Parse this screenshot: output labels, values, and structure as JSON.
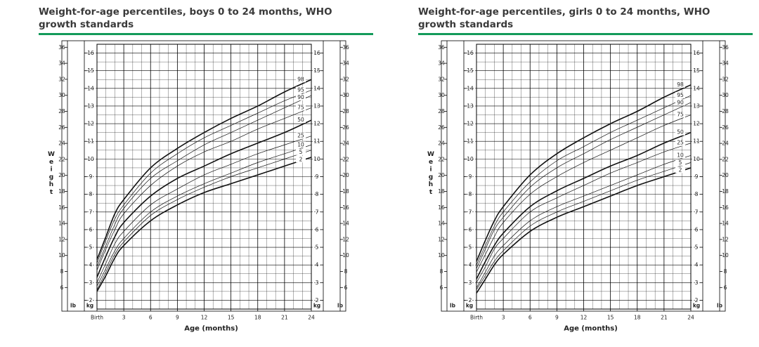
{
  "charts": [
    {
      "title": "Weight-for-age percentiles, boys 0 to 24 months, WHO growth standards"
    },
    {
      "title": "Weight-for-age percentiles, girls 0 to 24 months, WHO growth standards"
    }
  ],
  "chart_data": [
    {
      "type": "line",
      "title": "Weight-for-age percentiles, boys 0 to 24 months, WHO growth standards",
      "xlabel": "Age (months)",
      "ylabel": "Weight",
      "x_ticks": [
        0,
        3,
        6,
        9,
        12,
        15,
        18,
        21,
        24
      ],
      "x_tick_labels": [
        "Birth",
        "3",
        "6",
        "9",
        "12",
        "15",
        "18",
        "21",
        "24"
      ],
      "xlim": [
        0,
        24
      ],
      "kg_axis": {
        "unit": "kg",
        "lim": [
          1.5,
          16.5
        ],
        "ticks": [
          2,
          3,
          4,
          5,
          6,
          7,
          8,
          9,
          10,
          11,
          12,
          13,
          14,
          15,
          16
        ]
      },
      "lb_axis": {
        "unit": "lb",
        "ticks": [
          6,
          8,
          10,
          12,
          14,
          16,
          18,
          20,
          22,
          24,
          26,
          28,
          30,
          32,
          34,
          36
        ]
      },
      "grid": true,
      "x": [
        0,
        1,
        2,
        3,
        6,
        9,
        12,
        15,
        18,
        21,
        24
      ],
      "series": [
        {
          "name": "2",
          "values": [
            2.5,
            3.4,
            4.4,
            5.1,
            6.5,
            7.4,
            8.1,
            8.6,
            9.1,
            9.6,
            10.1
          ]
        },
        {
          "name": "5",
          "values": [
            2.6,
            3.6,
            4.6,
            5.3,
            6.8,
            7.7,
            8.4,
            9.0,
            9.5,
            10.0,
            10.5
          ]
        },
        {
          "name": "10",
          "values": [
            2.8,
            3.8,
            4.8,
            5.5,
            7.0,
            7.9,
            8.6,
            9.2,
            9.8,
            10.3,
            10.8
          ]
        },
        {
          "name": "25",
          "values": [
            3.0,
            4.1,
            5.2,
            5.9,
            7.4,
            8.3,
            9.1,
            9.7,
            10.3,
            10.8,
            11.3
          ]
        },
        {
          "name": "50",
          "values": [
            3.3,
            4.5,
            5.6,
            6.4,
            7.9,
            8.9,
            9.6,
            10.3,
            10.9,
            11.5,
            12.2
          ]
        },
        {
          "name": "75",
          "values": [
            3.7,
            4.9,
            6.0,
            6.9,
            8.5,
            9.6,
            10.4,
            11.0,
            11.7,
            12.3,
            12.9
          ]
        },
        {
          "name": "90",
          "values": [
            3.9,
            5.1,
            6.3,
            7.2,
            8.9,
            9.9,
            10.8,
            11.5,
            12.2,
            12.9,
            13.6
          ]
        },
        {
          "name": "95",
          "values": [
            4.1,
            5.4,
            6.6,
            7.4,
            9.2,
            10.3,
            11.2,
            11.9,
            12.6,
            13.3,
            13.9
          ]
        },
        {
          "name": "98",
          "values": [
            4.3,
            5.6,
            6.9,
            7.7,
            9.5,
            10.6,
            11.5,
            12.3,
            13.0,
            13.8,
            14.5
          ]
        }
      ]
    },
    {
      "type": "line",
      "title": "Weight-for-age percentiles, girls 0 to 24 months, WHO growth standards",
      "xlabel": "Age (months)",
      "ylabel": "Weight",
      "x_ticks": [
        0,
        3,
        6,
        9,
        12,
        15,
        18,
        21,
        24
      ],
      "x_tick_labels": [
        "Birth",
        "3",
        "6",
        "9",
        "12",
        "15",
        "18",
        "21",
        "24"
      ],
      "xlim": [
        0,
        24
      ],
      "kg_axis": {
        "unit": "kg",
        "lim": [
          1.5,
          16.5
        ],
        "ticks": [
          2,
          3,
          4,
          5,
          6,
          7,
          8,
          9,
          10,
          11,
          12,
          13,
          14,
          15,
          16
        ]
      },
      "lb_axis": {
        "unit": "lb",
        "ticks": [
          6,
          8,
          10,
          12,
          14,
          16,
          18,
          20,
          22,
          24,
          26,
          28,
          30,
          32,
          34,
          36
        ]
      },
      "grid": true,
      "x": [
        0,
        1,
        2,
        3,
        6,
        9,
        12,
        15,
        18,
        21,
        24
      ],
      "series": [
        {
          "name": "2",
          "values": [
            2.4,
            3.2,
            4.0,
            4.6,
            5.9,
            6.7,
            7.3,
            7.9,
            8.5,
            9.0,
            9.5
          ]
        },
        {
          "name": "5",
          "values": [
            2.6,
            3.4,
            4.2,
            4.8,
            6.2,
            7.0,
            7.6,
            8.2,
            8.8,
            9.3,
            9.8
          ]
        },
        {
          "name": "10",
          "values": [
            2.7,
            3.6,
            4.5,
            5.1,
            6.5,
            7.3,
            7.9,
            8.5,
            9.1,
            9.7,
            10.2
          ]
        },
        {
          "name": "25",
          "values": [
            3.0,
            3.9,
            4.9,
            5.5,
            7.0,
            7.8,
            8.5,
            9.2,
            9.8,
            10.4,
            10.9
          ]
        },
        {
          "name": "50",
          "values": [
            3.2,
            4.2,
            5.1,
            5.8,
            7.3,
            8.2,
            8.9,
            9.6,
            10.2,
            10.9,
            11.5
          ]
        },
        {
          "name": "75",
          "values": [
            3.6,
            4.6,
            5.6,
            6.4,
            8.0,
            9.0,
            9.8,
            10.5,
            11.2,
            11.9,
            12.5
          ]
        },
        {
          "name": "90",
          "values": [
            3.8,
            4.9,
            6.0,
            6.7,
            8.4,
            9.5,
            10.3,
            11.1,
            11.8,
            12.5,
            13.2
          ]
        },
        {
          "name": "95",
          "values": [
            4.0,
            5.1,
            6.2,
            7.0,
            8.7,
            9.9,
            10.7,
            11.5,
            12.2,
            12.9,
            13.6
          ]
        },
        {
          "name": "98",
          "values": [
            4.2,
            5.4,
            6.5,
            7.3,
            9.1,
            10.3,
            11.2,
            12.0,
            12.7,
            13.5,
            14.2
          ]
        }
      ]
    }
  ]
}
